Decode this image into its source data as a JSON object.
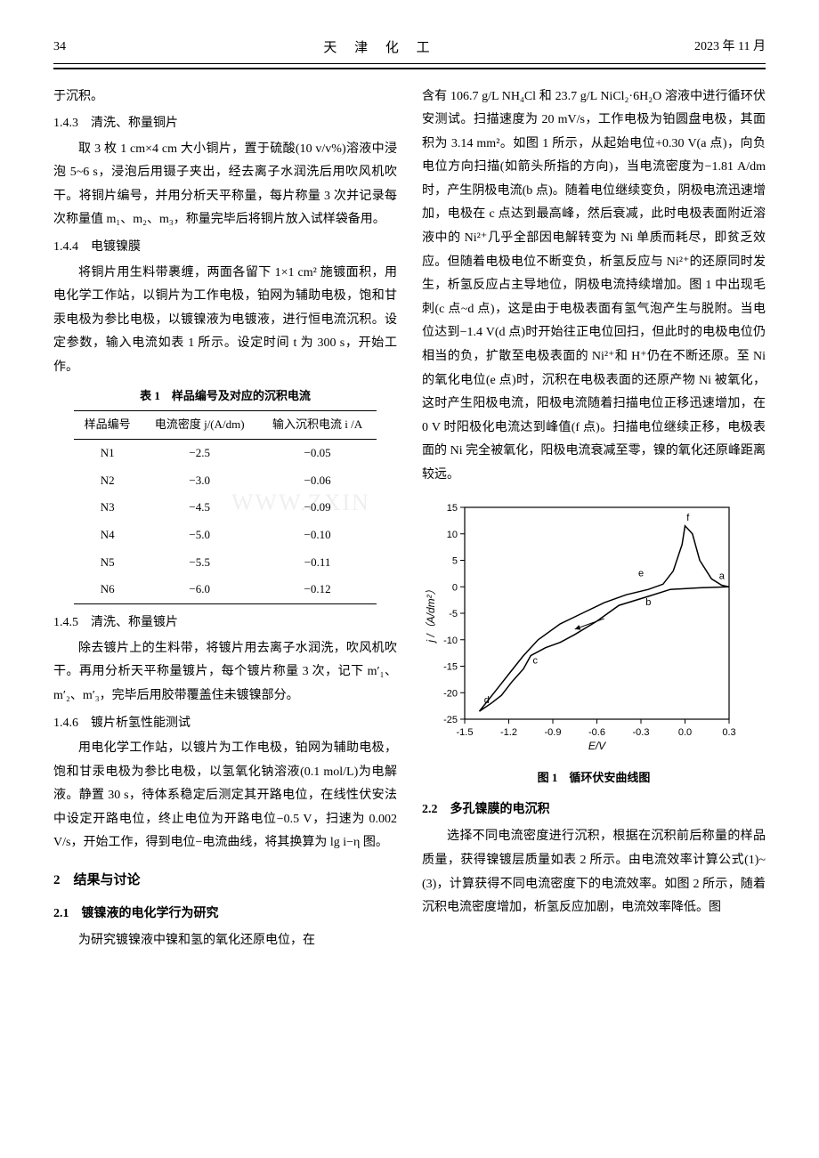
{
  "header": {
    "page_no": "34",
    "journal": "天 津 化 工",
    "date": "2023 年 11 月"
  },
  "left": {
    "p0": "于沉积。",
    "s143": "1.4.3　清洗、称量铜片",
    "p143": "取 3 枚 1 cm×4 cm 大小铜片，置于硫酸(10 v/v%)溶液中浸泡 5~6 s，浸泡后用镊子夹出，经去离子水润洗后用吹风机吹干。将铜片编号，并用分析天平称量，每片称量 3 次并记录每次称量值 m₁、m₂、m₃，称量完毕后将铜片放入试样袋备用。",
    "s144": "1.4.4　电镀镍膜",
    "p144": "将铜片用生料带裹缠，两面各留下 1×1 cm² 施镀面积，用电化学工作站，以铜片为工作电极，铂网为辅助电极，饱和甘汞电极为参比电极，以镀镍液为电镀液，进行恒电流沉积。设定参数，输入电流如表 1 所示。设定时间 t 为 300 s，开始工作。",
    "tbl1_caption": "表 1　样品编号及对应的沉积电流",
    "tbl1": {
      "headers": [
        "样品编号",
        "电流密度 j/(A/dm)",
        "输入沉积电流 i /A"
      ],
      "rows": [
        [
          "N1",
          "−2.5",
          "−0.05"
        ],
        [
          "N2",
          "−3.0",
          "−0.06"
        ],
        [
          "N3",
          "−4.5",
          "−0.09"
        ],
        [
          "N4",
          "−5.0",
          "−0.10"
        ],
        [
          "N5",
          "−5.5",
          "−0.11"
        ],
        [
          "N6",
          "−6.0",
          "−0.12"
        ]
      ]
    },
    "s145": "1.4.5　清洗、称量镀片",
    "p145": "除去镀片上的生料带，将镀片用去离子水润洗，吹风机吹干。再用分析天平称量镀片，每个镀片称量 3 次，记下 m′₁、m′₂、m′₃，完毕后用胶带覆盖住未镀镍部分。",
    "s146": "1.4.6　镀片析氢性能测试",
    "p146": "用电化学工作站，以镀片为工作电极，铂网为辅助电极，饱和甘汞电极为参比电极，以氢氧化钠溶液(0.1 mol/L)为电解液。静置 30 s，待体系稳定后测定其开路电位，在线性伏安法中设定开路电位，终止电位为开路电位−0.5 V，扫速为 0.002 V/s，开始工作，得到电位−电流曲线，将其换算为 lg i−η 图。",
    "sec2": "2　结果与讨论",
    "sec21": "2.1　镀镍液的电化学行为研究",
    "p21": "为研究镀镍液中镍和氢的氧化还原电位，在"
  },
  "right": {
    "p_cont": "含有 106.7 g/L NH₄Cl 和 23.7 g/L NiCl₂·6H₂O 溶液中进行循环伏安测试。扫描速度为 20 mV/s，工作电极为铂圆盘电极，其面积为 3.14 mm²。如图 1 所示，从起始电位+0.30 V(a 点)，向负电位方向扫描(如箭头所指的方向)，当电流密度为−1.81 A/dm 时，产生阴极电流(b 点)。随着电位继续变负，阴极电流迅速增加，电极在 c 点达到最高峰，然后衰减，此时电极表面附近溶液中的 Ni²⁺几乎全部因电解转变为 Ni 单质而耗尽，即贫乏效应。但随着电极电位不断变负，析氢反应与 Ni²⁺的还原同时发生，析氢反应占主导地位，阴极电流持续增加。图 1 中出现毛刺(c 点~d 点)，这是由于电极表面有氢气泡产生与脱附。当电位达到−1.4 V(d 点)时开始往正电位回扫，但此时的电极电位仍相当的负，扩散至电极表面的 Ni²⁺和 H⁺仍在不断还原。至 Ni 的氧化电位(e 点)时，沉积在电极表面的还原产物 Ni 被氧化，这时产生阳极电流，阳极电流随着扫描电位正移迅速增加，在 0 V 时阳极化电流达到峰值(f 点)。扫描电位继续正移，电极表面的 Ni 完全被氧化，阳极电流衰减至零，镍的氧化还原峰距离较远。",
    "fig1": {
      "type": "line",
      "xlabel": "E/V",
      "ylabel": "j /（A/dm²）",
      "xlim": [
        -1.5,
        0.3
      ],
      "xticks": [
        -1.5,
        -1.2,
        -0.9,
        -0.6,
        -0.3,
        0.0,
        0.3
      ],
      "ylim": [
        -25,
        15
      ],
      "yticks": [
        -25,
        -20,
        -15,
        -10,
        -5,
        0,
        5,
        10,
        15
      ],
      "line_color": "#000000",
      "line_width": 1.5,
      "background_color": "#ffffff",
      "grid": false,
      "annotations": [
        "a",
        "b",
        "c",
        "d",
        "e",
        "f"
      ],
      "forward_curve": [
        [
          0.3,
          0.0
        ],
        [
          0.1,
          -0.2
        ],
        [
          -0.1,
          -0.5
        ],
        [
          -0.25,
          -1.8
        ],
        [
          -0.45,
          -3.5
        ],
        [
          -0.6,
          -6.5
        ],
        [
          -0.75,
          -9.0
        ],
        [
          -0.85,
          -10.5
        ],
        [
          -0.95,
          -11.5
        ],
        [
          -1.05,
          -13.0
        ],
        [
          -1.1,
          -15.5
        ],
        [
          -1.18,
          -18.0
        ],
        [
          -1.25,
          -20.5
        ],
        [
          -1.32,
          -22.0
        ],
        [
          -1.4,
          -23.5
        ]
      ],
      "reverse_curve": [
        [
          -1.4,
          -23.5
        ],
        [
          -1.3,
          -20.0
        ],
        [
          -1.2,
          -16.5
        ],
        [
          -1.1,
          -13.0
        ],
        [
          -1.0,
          -10.0
        ],
        [
          -0.85,
          -7.0
        ],
        [
          -0.7,
          -5.0
        ],
        [
          -0.55,
          -3.0
        ],
        [
          -0.4,
          -1.5
        ],
        [
          -0.25,
          -0.5
        ],
        [
          -0.15,
          0.5
        ],
        [
          -0.08,
          3.0
        ],
        [
          -0.02,
          8.0
        ],
        [
          0.0,
          11.5
        ],
        [
          0.05,
          10.0
        ],
        [
          0.1,
          5.0
        ],
        [
          0.18,
          1.5
        ],
        [
          0.25,
          0.3
        ],
        [
          0.3,
          0.0
        ]
      ],
      "label_positions": {
        "a": [
          0.25,
          1.5
        ],
        "b": [
          -0.25,
          -3.5
        ],
        "c": [
          -1.02,
          -14.5
        ],
        "d": [
          -1.35,
          -22.0
        ],
        "e": [
          -0.3,
          2.0
        ],
        "f": [
          0.02,
          12.5
        ]
      },
      "arrow_hint": [
        [
          -0.55,
          -6.0
        ],
        [
          -0.75,
          -8.0
        ]
      ],
      "caption": "图 1　循环伏安曲线图"
    },
    "sec22": "2.2　多孔镍膜的电沉积",
    "p22": "选择不同电流密度进行沉积，根据在沉积前后称量的样品质量，获得镍镀层质量如表 2 所示。由电流效率计算公式(1)~(3)，计算获得不同电流密度下的电流效率。如图 2 所示，随着沉积电流密度增加，析氢反应加剧，电流效率降低。图"
  },
  "watermark": "WWW.ZXIN"
}
